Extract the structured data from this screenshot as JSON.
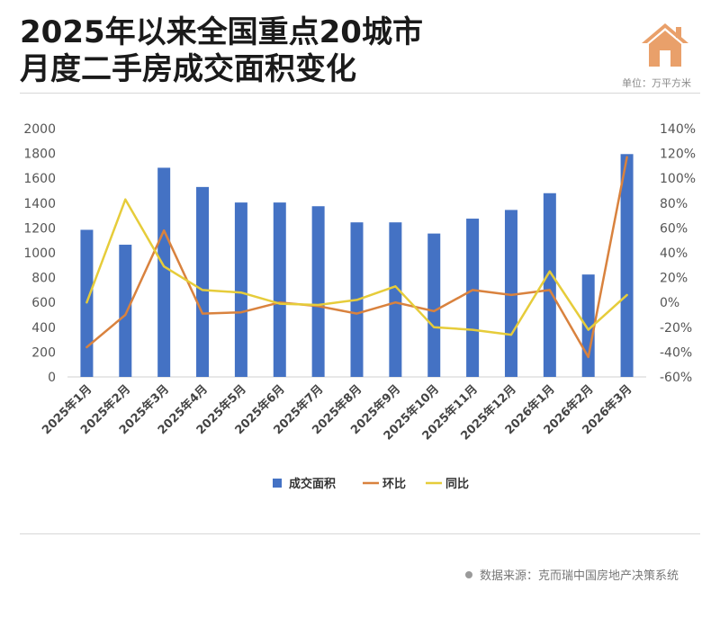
{
  "header": {
    "title_line1": "2025年以来全国重点20城市",
    "title_line2": "月度二手房成交面积变化",
    "unit": "单位：万平方米"
  },
  "footer": {
    "source": "数据来源：克而瑞中国房地产决策系统"
  },
  "colors": {
    "bar": "#4472C4",
    "mom": "#D9823E",
    "yoy": "#E6CC3A",
    "axis_text": "#555555",
    "divider": "#D8D8D8"
  },
  "chart_data": {
    "type": "bar",
    "categories": [
      "2025年1月",
      "2025年2月",
      "2025年3月",
      "2025年4月",
      "2025年5月",
      "2025年6月",
      "2025年7月",
      "2025年8月",
      "2025年9月",
      "2025年10月",
      "2025年11月",
      "2025年12月",
      "2026年1月",
      "2026年2月",
      "2026年3月"
    ],
    "series": [
      {
        "name": "成交面积",
        "type": "bar",
        "axis": "left",
        "values": [
          1185,
          1065,
          1685,
          1530,
          1405,
          1405,
          1375,
          1245,
          1245,
          1155,
          1275,
          1345,
          1480,
          825,
          1795
        ]
      },
      {
        "name": "环比",
        "type": "line",
        "axis": "right",
        "values": [
          -0.36,
          -0.1,
          0.58,
          -0.09,
          -0.08,
          0.0,
          -0.03,
          -0.09,
          0.0,
          -0.07,
          0.1,
          0.06,
          0.1,
          -0.44,
          1.17
        ]
      },
      {
        "name": "同比",
        "type": "line",
        "axis": "right",
        "values": [
          0.0,
          0.83,
          0.29,
          0.1,
          0.08,
          -0.01,
          -0.02,
          0.02,
          0.13,
          -0.2,
          -0.22,
          -0.26,
          0.25,
          -0.22,
          0.06
        ]
      }
    ],
    "y_left": {
      "min": 0,
      "max": 2000,
      "ticks": [
        "0",
        "200",
        "400",
        "600",
        "800",
        "1000",
        "1200",
        "1400",
        "1600",
        "1800",
        "2000"
      ]
    },
    "y_right": {
      "min": -0.6,
      "max": 1.4,
      "ticks": [
        "-60%",
        "-40%",
        "-20%",
        "0%",
        "20%",
        "40%",
        "60%",
        "80%",
        "100%",
        "120%",
        "140%"
      ]
    },
    "legend": {
      "position": "bottom",
      "items": [
        "成交面积",
        "环比",
        "同比"
      ]
    },
    "grid": false
  }
}
